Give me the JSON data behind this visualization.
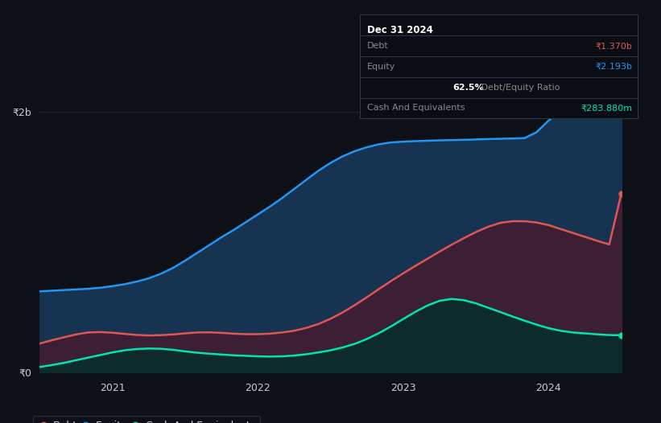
{
  "background_color": "#0d1117",
  "plot_bg_color": "#0d1117",
  "y_label_2b": "₹2b",
  "y_label_0": "₹0",
  "x_ticks": [
    "2021",
    "2022",
    "2023",
    "2024"
  ],
  "equity_color": "#2196f3",
  "debt_color": "#e05555",
  "cash_color": "#00e5b0",
  "equity_fill": "#163352",
  "debt_fill": "#3d1f35",
  "cash_fill": "#0d2b2b",
  "grid_color": "#1e2d3d",
  "legend_items": [
    "Debt",
    "Equity",
    "Cash And Equivalents"
  ],
  "tooltip": {
    "date": "Dec 31 2024",
    "debt_label": "Debt",
    "debt_value": "₹1.370b",
    "equity_label": "Equity",
    "equity_value": "₹2.193b",
    "ratio_pct": "62.5%",
    "ratio_label": "Debt/Equity Ratio",
    "cash_label": "Cash And Equivalents",
    "cash_value": "₹283.880m",
    "bg_color": "#0a0e14",
    "border_color": "#2a3a4a",
    "title_color": "#ffffff",
    "label_color": "#888888",
    "debt_val_color": "#e05555",
    "equity_val_color": "#2196f3",
    "cash_val_color": "#00e5b0",
    "ratio_val_color": "#ffffff",
    "ratio_label_color": "#888888"
  },
  "x_data": [
    0,
    0.083,
    0.167,
    0.25,
    0.333,
    0.417,
    0.5,
    0.583,
    0.667,
    0.75,
    0.833,
    0.917,
    1.0,
    1.083,
    1.167,
    1.25,
    1.333,
    1.417,
    1.5,
    1.583,
    1.667,
    1.75,
    1.833,
    1.917,
    2.0,
    2.083,
    2.167,
    2.25,
    2.333,
    2.417,
    2.5,
    2.583,
    2.667,
    2.75,
    2.833,
    2.917,
    3.0,
    3.083,
    3.167,
    3.25,
    3.333,
    3.417,
    3.5,
    3.583,
    3.667,
    3.75,
    3.833,
    3.917,
    4.0
  ],
  "equity_data": [
    0.62,
    0.625,
    0.63,
    0.635,
    0.64,
    0.648,
    0.66,
    0.675,
    0.695,
    0.72,
    0.755,
    0.8,
    0.855,
    0.915,
    0.975,
    1.035,
    1.09,
    1.15,
    1.21,
    1.27,
    1.335,
    1.405,
    1.475,
    1.545,
    1.605,
    1.655,
    1.695,
    1.725,
    1.748,
    1.762,
    1.768,
    1.772,
    1.775,
    1.778,
    1.78,
    1.782,
    1.785,
    1.788,
    1.79,
    1.792,
    1.795,
    1.84,
    1.93,
    2.0,
    2.05,
    2.08,
    2.1,
    2.12,
    2.193
  ],
  "debt_data": [
    0.22,
    0.245,
    0.268,
    0.29,
    0.305,
    0.308,
    0.303,
    0.294,
    0.286,
    0.282,
    0.284,
    0.29,
    0.298,
    0.305,
    0.306,
    0.302,
    0.296,
    0.292,
    0.292,
    0.296,
    0.305,
    0.318,
    0.34,
    0.37,
    0.41,
    0.458,
    0.515,
    0.575,
    0.638,
    0.7,
    0.758,
    0.815,
    0.87,
    0.925,
    0.978,
    1.028,
    1.075,
    1.115,
    1.145,
    1.158,
    1.158,
    1.148,
    1.128,
    1.098,
    1.068,
    1.038,
    1.008,
    0.98,
    1.37
  ],
  "cash_data": [
    0.04,
    0.055,
    0.072,
    0.092,
    0.112,
    0.132,
    0.152,
    0.168,
    0.178,
    0.182,
    0.18,
    0.172,
    0.16,
    0.15,
    0.142,
    0.136,
    0.13,
    0.126,
    0.122,
    0.12,
    0.122,
    0.128,
    0.138,
    0.152,
    0.168,
    0.19,
    0.218,
    0.255,
    0.3,
    0.352,
    0.408,
    0.463,
    0.512,
    0.548,
    0.562,
    0.553,
    0.528,
    0.495,
    0.462,
    0.428,
    0.396,
    0.365,
    0.338,
    0.318,
    0.305,
    0.298,
    0.291,
    0.285,
    0.28388
  ],
  "ylim": [
    0,
    2.4
  ],
  "xlim": [
    0,
    4.0
  ]
}
